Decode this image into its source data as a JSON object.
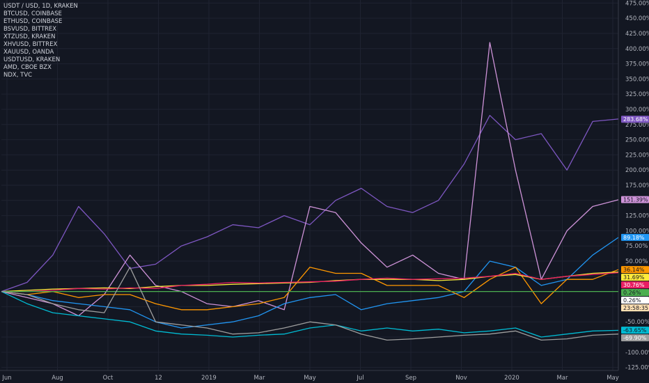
{
  "legend": {
    "items": [
      "USDT / USD, 1D, KRAKEN",
      "BTCUSD, COINBASE",
      "ETHUSD, COINBASE",
      "BSVUSD, BITTREX",
      "XTZUSD, KRAKEN",
      "XHVUSD, BITTREX",
      "XAUUSD, OANDA",
      "USDTUSD, KRAKEN",
      "AMD, CBOE BZX",
      "NDX, TVC"
    ]
  },
  "chart_data": {
    "type": "line",
    "x_tick_labels": [
      "Jun",
      "Aug",
      "Oct",
      "12",
      "2019",
      "Mar",
      "May",
      "Jul",
      "Sep",
      "Nov",
      "2020",
      "Mar",
      "May"
    ],
    "y_tick_labels": [
      "475.00%",
      "450.00%",
      "425.00%",
      "400.00%",
      "375.00%",
      "350.00%",
      "325.00%",
      "300.00%",
      "275.00%",
      "250.00%",
      "225.00%",
      "200.00%",
      "175.00%",
      "150.00%",
      "125.00%",
      "100.00%",
      "75.00%",
      "50.00%",
      "25.00%",
      "0.00%",
      "-25.00%",
      "-50.00%",
      "-75.00%",
      "-100.00%",
      "-125.00%"
    ],
    "ylim": [
      -130,
      480
    ],
    "y_unit": "%",
    "grid": true,
    "scale_labels": [
      {
        "text": "283.68%",
        "color": "#7e57c2"
      },
      {
        "text": "151.39%",
        "color": "#ce93d8"
      },
      {
        "text": "89.18%",
        "color": "#2196f3"
      },
      {
        "text": "36.14%",
        "color": "#ff9800"
      },
      {
        "text": "31.69%",
        "color": "#ffeb3b"
      },
      {
        "text": "30.76%",
        "color": "#e91e63"
      },
      {
        "text": "0.26%",
        "color": "#4caf50"
      },
      {
        "text": "0.26%",
        "color": "#ffffff"
      },
      {
        "text": "23:58:35",
        "color": "#ffe0b2"
      },
      {
        "text": "-63.65%",
        "color": "#00bcd4"
      },
      {
        "text": "-69.90%",
        "color": "#9e9e9e"
      }
    ],
    "x": [
      0,
      1,
      2,
      3,
      4,
      5,
      6,
      7,
      8,
      9,
      10,
      11,
      12,
      13,
      14,
      15,
      16,
      17,
      18,
      19,
      20,
      21,
      22,
      23,
      24
    ],
    "series": [
      {
        "color": "#7e57c2",
        "values": [
          0,
          15,
          60,
          140,
          95,
          38,
          45,
          75,
          90,
          110,
          105,
          125,
          110,
          150,
          170,
          140,
          130,
          150,
          210,
          290,
          250,
          260,
          200,
          280,
          284
        ]
      },
      {
        "color": "#ce93d8",
        "values": [
          0,
          -10,
          -20,
          -40,
          -5,
          60,
          10,
          0,
          -20,
          -25,
          -15,
          -30,
          140,
          130,
          80,
          40,
          60,
          30,
          20,
          410,
          200,
          20,
          100,
          140,
          151
        ]
      },
      {
        "color": "#2196f3",
        "values": [
          0,
          -5,
          -15,
          -20,
          -25,
          -30,
          -50,
          -60,
          -55,
          -50,
          -40,
          -20,
          -10,
          -5,
          -30,
          -20,
          -15,
          -10,
          0,
          50,
          40,
          10,
          20,
          60,
          89
        ]
      },
      {
        "color": "#ff9800",
        "values": [
          0,
          -5,
          0,
          -10,
          -5,
          -5,
          -20,
          -30,
          -30,
          -25,
          -20,
          -10,
          40,
          30,
          30,
          10,
          10,
          10,
          -10,
          20,
          40,
          -20,
          20,
          20,
          36
        ]
      },
      {
        "color": "#ffeb3b",
        "values": [
          0,
          2,
          4,
          5,
          6,
          5,
          8,
          10,
          10,
          12,
          13,
          14,
          15,
          18,
          20,
          20,
          20,
          18,
          20,
          25,
          28,
          20,
          25,
          30,
          32
        ]
      },
      {
        "color": "#e91e63",
        "values": [
          0,
          0,
          2,
          5,
          4,
          6,
          5,
          10,
          12,
          15,
          14,
          15,
          16,
          17,
          20,
          22,
          20,
          21,
          22,
          25,
          30,
          20,
          25,
          28,
          31
        ]
      },
      {
        "color": "#4caf50",
        "values": [
          0,
          0,
          0,
          0,
          0,
          0,
          0,
          0,
          0,
          0,
          0,
          0,
          0,
          0,
          0,
          0,
          0,
          0,
          0,
          0,
          0,
          0,
          0,
          0,
          0
        ]
      },
      {
        "color": "#00bcd4",
        "values": [
          0,
          -20,
          -35,
          -40,
          -45,
          -50,
          -65,
          -70,
          -72,
          -75,
          -72,
          -70,
          -60,
          -55,
          -65,
          -60,
          -65,
          -62,
          -68,
          -65,
          -60,
          -75,
          -70,
          -65,
          -64
        ]
      },
      {
        "color": "#9e9e9e",
        "values": [
          0,
          -5,
          -20,
          -30,
          -35,
          40,
          -50,
          -55,
          -60,
          -70,
          -68,
          -60,
          -50,
          -55,
          -70,
          -80,
          -78,
          -75,
          -72,
          -70,
          -65,
          -80,
          -78,
          -72,
          -70
        ]
      }
    ]
  }
}
